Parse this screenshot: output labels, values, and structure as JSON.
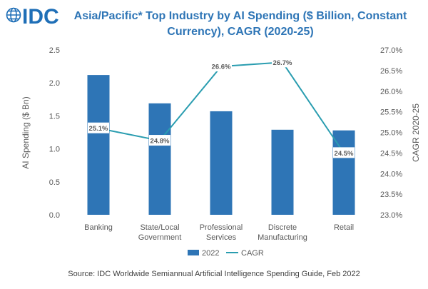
{
  "logo": {
    "text": "IDC"
  },
  "colors": {
    "bar": "#2E75B6",
    "line": "#2A9DB0",
    "title": "#2E75B6",
    "logo": "#1F6FB7"
  },
  "chart_data": {
    "type": "bar",
    "title_line1": "Asia/Pacific* Top Industry by AI Spending ($ Billion, Constant",
    "title_line2": "Currency), CAGR (2020-25)",
    "categories": [
      [
        "Banking"
      ],
      [
        "State/Local",
        "Government"
      ],
      [
        "Professional",
        "Services"
      ],
      [
        "Discrete",
        "Manufacturing"
      ],
      [
        "Retail"
      ]
    ],
    "series": [
      {
        "name": "2022",
        "type": "bar",
        "axis": "left",
        "values": [
          2.12,
          1.69,
          1.57,
          1.29,
          1.28
        ]
      },
      {
        "name": "CAGR",
        "type": "line",
        "axis": "right",
        "values": [
          25.1,
          24.8,
          26.6,
          26.7,
          24.5
        ],
        "labels": [
          "25.1%",
          "24.8%",
          "26.6%",
          "26.7%",
          "24.5%"
        ]
      }
    ],
    "ylabel": "AI Spending ($ Bn)",
    "ylim": [
      0,
      2.5
    ],
    "yticks": [
      "0.0",
      "0.5",
      "1.0",
      "1.5",
      "2.0",
      "2.5"
    ],
    "y2label": "CAGR 2020-25",
    "y2lim": [
      23.0,
      27.0
    ],
    "y2ticks": [
      "23.0%",
      "23.5%",
      "24.0%",
      "24.5%",
      "25.0%",
      "25.5%",
      "26.0%",
      "26.5%",
      "27.0%"
    ],
    "grid": false,
    "legend": "bottom",
    "source": "Source:  IDC Worldwide Semiannual Artificial Intelligence Spending Guide, Feb 2022"
  }
}
